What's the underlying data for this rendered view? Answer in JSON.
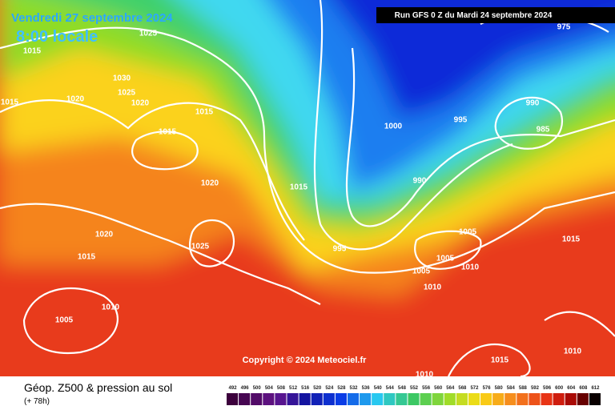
{
  "header": {
    "valid_date": "Vendredi 27 septembre 2024",
    "local_time": "8:00 locale",
    "run": "Run GFS 0 Z du Mardi 24 septembre 2024"
  },
  "copyright": "Copyright © 2024 Meteociel.fr",
  "footer": {
    "title": "Géop. Z500 & pression au sol",
    "lead_time": "(+ 78h)"
  },
  "isobar_labels": [
    "1015",
    "1025",
    "1030",
    "1025",
    "1020",
    "1020",
    "1015",
    "1015",
    "1015",
    "1000",
    "995",
    "990",
    "985",
    "975",
    "1020",
    "1015",
    "990",
    "1020",
    "1025",
    "1015",
    "995",
    "1005",
    "1005",
    "1010",
    "1005",
    "1010",
    "1015",
    "1010",
    "1005",
    "1015",
    "1010",
    "1010"
  ],
  "legend": {
    "values": [
      492,
      496,
      500,
      504,
      508,
      512,
      516,
      520,
      524,
      528,
      532,
      536,
      540,
      544,
      548,
      552,
      556,
      560,
      564,
      568,
      572,
      576,
      580,
      584,
      588,
      592,
      596,
      600,
      604,
      608,
      612
    ]
  }
}
